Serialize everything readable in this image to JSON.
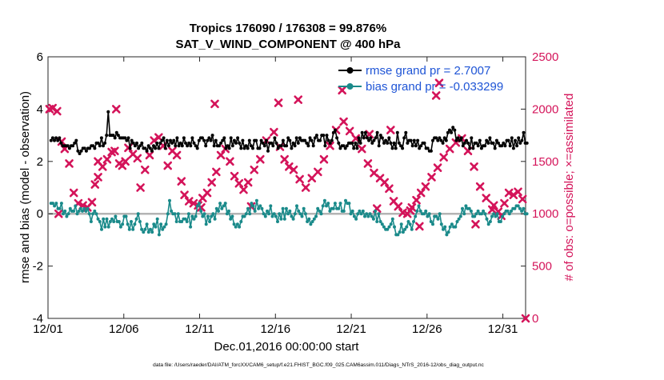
{
  "chart_data": {
    "type": "line",
    "title": "Tropics 176090 / 176308 = 99.876%",
    "subtitle": "SAT_V_WIND_COMPONENT @ 400 hPa",
    "xlabel": "Dec.01,2016 00:00:00 start",
    "ylabel_left": "rmse and bias (model - observation)",
    "ylabel_right": "# of obs: o=possible; ×=assimilated",
    "footer": "data file: /Users/raeder/DAI/ATM_forcXX/CAM6_setup/f.e21.FHIST_BGC.f09_025.CAM6assim.011/Diags_NTrS_2016-12/obs_diag_output.nc",
    "xlim": [
      0,
      31.5
    ],
    "ylim_left": [
      -4,
      6
    ],
    "ylim_right": [
      0,
      2500
    ],
    "x_ticks": [
      0,
      5,
      10,
      15,
      20,
      25,
      30
    ],
    "x_tick_labels": [
      "12/01",
      "12/06",
      "12/11",
      "12/16",
      "12/21",
      "12/26",
      "12/31"
    ],
    "y_left_ticks": [
      -4,
      -2,
      0,
      2,
      4,
      6
    ],
    "y_right_ticks": [
      0,
      500,
      1000,
      1500,
      2000,
      2500
    ],
    "legend": [
      {
        "name": "rmse grand pr = 2.7007",
        "color": "#000000"
      },
      {
        "name": "bias grand pr = -0.033299",
        "color": "#1a8a8a"
      }
    ],
    "colors": {
      "rmse": "#000000",
      "bias": "#1a8a8a",
      "obs": "#d4145a",
      "label_right": "#d4145a",
      "legend_text": "#1f55d6",
      "zero_line": "#b4b4b4"
    },
    "rmse": [
      2.8,
      2.9,
      2.8,
      2.9,
      2.8,
      2.9,
      2.7,
      2.6,
      2.6,
      2.6,
      2.6,
      2.5,
      2.6,
      2.6,
      2.7,
      2.8,
      2.4,
      2.3,
      2.4,
      2.5,
      2.5,
      2.4,
      2.5,
      2.5,
      2.6,
      2.6,
      2.5,
      2.7,
      2.7,
      2.6,
      2.9,
      2.6,
      2.7,
      3.0,
      3.9,
      3.0,
      3.0,
      3.0,
      2.9,
      3.1,
      3.0,
      2.9,
      2.9,
      2.9,
      2.9,
      2.8,
      2.9,
      2.5,
      2.8,
      2.7,
      2.6,
      2.7,
      2.5,
      2.6,
      2.7,
      2.5,
      2.5,
      2.4,
      2.6,
      2.5,
      2.4,
      2.6,
      2.5,
      2.7,
      2.5,
      2.7,
      2.8,
      2.9,
      2.5,
      2.8,
      2.6,
      2.8,
      2.7,
      2.8,
      2.6,
      2.9,
      2.6,
      2.7,
      2.6,
      2.9,
      2.7,
      2.6,
      2.7,
      2.6,
      2.9,
      2.7,
      2.6,
      2.5,
      2.8,
      2.9,
      2.9,
      2.8,
      2.6,
      2.8,
      2.9,
      2.8,
      3.0,
      2.6,
      2.8,
      2.6,
      2.6,
      2.7,
      2.8,
      2.9,
      2.5,
      2.6,
      2.5,
      2.9,
      2.6,
      2.8,
      2.7,
      2.9,
      2.7,
      2.5,
      2.8,
      2.5,
      2.6,
      2.5,
      2.8,
      2.6,
      2.5,
      2.8,
      2.8,
      2.5,
      2.5,
      2.8,
      2.7,
      2.6,
      2.8,
      2.4,
      2.7,
      2.7,
      2.6,
      2.9,
      2.7,
      2.5,
      2.6,
      2.6,
      2.8,
      2.6,
      2.6,
      2.9,
      2.8,
      2.5,
      2.7,
      2.6,
      2.9,
      2.7,
      2.9,
      2.8,
      2.8,
      2.8,
      2.7,
      2.6,
      2.9,
      2.8,
      2.6,
      2.9,
      3.0,
      2.8,
      2.8,
      3.0,
      3.0,
      2.6,
      3.0,
      2.8,
      2.7,
      2.8,
      3.1,
      3.2,
      2.9,
      2.7,
      2.5,
      2.6,
      2.6,
      2.5,
      2.6,
      2.7,
      2.7,
      2.7,
      2.5,
      2.7,
      2.5,
      2.9,
      2.7,
      3.1,
      2.9,
      3.1,
      2.9,
      2.8,
      2.9,
      2.7,
      2.8,
      2.9,
      3.1,
      2.6,
      3.0,
      2.9,
      2.7,
      2.8,
      2.7,
      2.9,
      2.7,
      2.5,
      2.7,
      2.5,
      3.1,
      2.7,
      2.6,
      2.5,
      2.9,
      3.1,
      2.7,
      2.8,
      2.8,
      2.6,
      2.8,
      2.6,
      2.8,
      2.5,
      2.6,
      2.7,
      2.7,
      2.5,
      2.5,
      2.4,
      2.4,
      2.8,
      2.9,
      2.9,
      2.8,
      2.9,
      2.8,
      2.7,
      2.9,
      2.8,
      3.1,
      3.2,
      3.1,
      3.3,
      3.2,
      2.8,
      2.9,
      2.8,
      2.9,
      2.6,
      2.7,
      2.8,
      2.7,
      2.5,
      2.9,
      2.5,
      2.7,
      2.7,
      2.6,
      2.8,
      2.5,
      2.6,
      2.6,
      2.8,
      2.7,
      2.9,
      2.7,
      2.7,
      2.5,
      2.8,
      2.7,
      2.6,
      2.6,
      2.7,
      2.6,
      2.8,
      2.8,
      2.6,
      2.9,
      2.5,
      2.8,
      2.6,
      2.9,
      2.7,
      2.8,
      3.1,
      2.7,
      2.7
    ],
    "bias": [
      0.4,
      0.4,
      0.3,
      0.4,
      0.2,
      0.2,
      0.4,
      0.0,
      0.1,
      -0.1,
      0.0,
      0.2,
      0.1,
      0.1,
      0.3,
      0.0,
      0.1,
      0.2,
      0.1,
      0.2,
      0.1,
      0.2,
      0.0,
      -0.3,
      0.0,
      0.1,
      0.0,
      -0.2,
      -0.3,
      -0.6,
      -0.2,
      -0.5,
      -0.2,
      -0.5,
      -0.3,
      -0.2,
      -0.3,
      -0.1,
      -0.3,
      -0.3,
      -0.5,
      -0.4,
      -0.1,
      -0.1,
      -0.4,
      -0.6,
      -0.3,
      -0.6,
      -0.4,
      -0.2,
      0.0,
      -0.3,
      -0.6,
      -0.7,
      -0.6,
      -0.4,
      -0.7,
      -0.6,
      -0.7,
      -0.4,
      -0.5,
      -0.2,
      -0.8,
      -0.4,
      -0.6,
      -0.5,
      -0.4,
      0.0,
      0.5,
      0.1,
      0.0,
      0.0,
      -0.3,
      0.0,
      -0.3,
      -0.3,
      -0.2,
      -0.2,
      -0.3,
      0.0,
      -0.5,
      -0.1,
      -0.2,
      -0.1,
      0.3,
      0.4,
      0.1,
      -0.1,
      0.0,
      -0.4,
      -0.1,
      -0.3,
      -0.1,
      0.0,
      -0.2,
      0.2,
      0.1,
      0.4,
      0.2,
      0.3,
      0.4,
      0.0,
      0.1,
      -0.2,
      -0.1,
      -0.4,
      -0.5,
      -0.4,
      -0.5,
      -0.3,
      -0.1,
      -0.1,
      0.0,
      0.2,
      0.0,
      0.4,
      0.3,
      0.1,
      0.5,
      0.2,
      0.3,
      0.2,
      0.0,
      -0.1,
      0.1,
      0.0,
      0.3,
      -0.1,
      0.0,
      -0.1,
      -0.3,
      0.0,
      -0.2,
      0.2,
      -0.2,
      0.2,
      0.0,
      0.1,
      -0.1,
      -0.2,
      0.0,
      0.3,
      0.1,
      0.0,
      -0.1,
      0.2,
      0.0,
      -0.3,
      -0.2,
      -0.4,
      -0.3,
      -0.2,
      -0.1,
      0.2,
      0.1,
      0.0,
      0.3,
      0.5,
      0.3,
      0.4,
      0.1,
      0.2,
      0.2,
      0.4,
      0.2,
      0.2,
      0.4,
      0.1,
      0.1,
      0.5,
      0.4,
      0.4,
      0.0,
      0.1,
      -0.1,
      -0.2,
      0.0,
      0.1,
      0.0,
      0.1,
      -0.1,
      0.0,
      -0.1,
      0.0,
      -0.1,
      -0.2,
      0.1,
      -0.3,
      0.0,
      -0.3,
      -0.4,
      -0.5,
      -0.6,
      -0.6,
      -0.5,
      -0.4,
      -0.2,
      -0.5,
      -0.8,
      -0.8,
      -0.7,
      -0.4,
      -0.7,
      -0.6,
      -0.5,
      -0.3,
      -0.4,
      -0.6,
      -0.3,
      -0.1,
      0.1,
      0.3,
      0.1,
      0.0,
      0.0,
      0.1,
      -0.1,
      0.0,
      -0.3,
      -0.4,
      -0.1,
      -0.1,
      -0.2,
      0.0,
      -0.4,
      -0.6,
      -0.5,
      -0.8,
      -0.7,
      -0.5,
      -0.4,
      -0.5,
      -0.5,
      -0.3,
      -0.2,
      -0.1,
      0.2,
      0.0,
      0.3,
      0.2,
      0.2,
      0.1,
      -0.1,
      -0.1,
      0.0,
      0.1,
      0.0,
      0.0,
      0.1,
      0.0,
      -0.2,
      -0.4,
      -0.3,
      -0.1,
      0.0,
      -0.1,
      0.0,
      -0.3,
      -0.3,
      -0.1,
      0.0,
      0.1,
      0.1,
      0.0,
      0.1,
      0.2,
      0.2,
      0.3,
      0.3,
      0.2,
      0.1,
      0.2,
      0.0,
      0.0
    ],
    "obs_count": [
      [
        0.1,
        2000
      ],
      [
        0.3,
        2010
      ],
      [
        0.6,
        1980
      ],
      [
        0.9,
        1690
      ],
      [
        1.1,
        1620
      ],
      [
        1.4,
        1480
      ],
      [
        1.7,
        1200
      ],
      [
        2.0,
        1100
      ],
      [
        2.3,
        1080
      ],
      [
        2.6,
        1060
      ],
      [
        2.9,
        1110
      ],
      [
        3.1,
        1280
      ],
      [
        3.3,
        1350
      ],
      [
        3.6,
        1450
      ],
      [
        3.9,
        1520
      ],
      [
        4.2,
        1590
      ],
      [
        4.4,
        1600
      ],
      [
        4.7,
        1480
      ],
      [
        4.9,
        1460
      ],
      [
        5.1,
        1500
      ],
      [
        5.3,
        1630
      ],
      [
        5.6,
        1570
      ],
      [
        5.9,
        1530
      ],
      [
        6.1,
        1250
      ],
      [
        6.4,
        1420
      ],
      [
        6.7,
        1560
      ],
      [
        7.0,
        1700
      ],
      [
        7.3,
        1730
      ],
      [
        7.6,
        1650
      ],
      [
        7.9,
        1460
      ],
      [
        8.2,
        1600
      ],
      [
        8.5,
        1560
      ],
      [
        8.8,
        1310
      ],
      [
        9.0,
        1180
      ],
      [
        9.3,
        1120
      ],
      [
        9.6,
        1100
      ],
      [
        9.9,
        1080
      ],
      [
        10.2,
        1150
      ],
      [
        10.5,
        1200
      ],
      [
        10.8,
        1300
      ],
      [
        11.1,
        1400
      ],
      [
        11.4,
        1560
      ],
      [
        11.7,
        1620
      ],
      [
        12.0,
        1500
      ],
      [
        12.3,
        1360
      ],
      [
        12.6,
        1290
      ],
      [
        12.9,
        1230
      ],
      [
        13.2,
        1300
      ],
      [
        13.6,
        1420
      ],
      [
        14.0,
        1520
      ],
      [
        14.4,
        1700
      ],
      [
        14.9,
        1780
      ],
      [
        15.3,
        1640
      ],
      [
        15.6,
        1520
      ],
      [
        15.9,
        1450
      ],
      [
        16.2,
        1420
      ],
      [
        16.6,
        1330
      ],
      [
        17.0,
        1250
      ],
      [
        17.4,
        1340
      ],
      [
        17.8,
        1400
      ],
      [
        18.2,
        1520
      ],
      [
        18.6,
        1650
      ],
      [
        19.0,
        1800
      ],
      [
        19.5,
        1880
      ],
      [
        19.9,
        1790
      ],
      [
        20.3,
        1720
      ],
      [
        20.7,
        1620
      ],
      [
        21.1,
        1480
      ],
      [
        21.5,
        1390
      ],
      [
        21.9,
        1340
      ],
      [
        22.2,
        1300
      ],
      [
        22.5,
        1240
      ],
      [
        22.8,
        1120
      ],
      [
        23.1,
        1070
      ],
      [
        23.4,
        1010
      ],
      [
        23.7,
        1000
      ],
      [
        24.0,
        1060
      ],
      [
        24.3,
        1130
      ],
      [
        24.6,
        1200
      ],
      [
        24.9,
        1260
      ],
      [
        25.3,
        1350
      ],
      [
        25.7,
        1440
      ],
      [
        26.1,
        1540
      ],
      [
        26.5,
        1620
      ],
      [
        26.9,
        1680
      ],
      [
        27.3,
        1720
      ],
      [
        27.7,
        1600
      ],
      [
        28.1,
        1450
      ],
      [
        28.5,
        1260
      ],
      [
        28.9,
        1150
      ],
      [
        29.3,
        1040
      ],
      [
        29.7,
        1020
      ],
      [
        30.1,
        1100
      ],
      [
        30.4,
        1200
      ],
      [
        30.7,
        1180
      ],
      [
        31.0,
        1210
      ],
      [
        31.3,
        1140
      ]
    ],
    "obs_outliers": [
      [
        0.7,
        1000
      ],
      [
        3.3,
        1500
      ],
      [
        4.5,
        2000
      ],
      [
        11.0,
        2050
      ],
      [
        15.2,
        2060
      ],
      [
        16.5,
        2090
      ],
      [
        19.4,
        2180
      ],
      [
        21.2,
        1760
      ],
      [
        22.6,
        1800
      ],
      [
        25.6,
        2130
      ],
      [
        25.8,
        2250
      ],
      [
        10.1,
        1060
      ],
      [
        13.4,
        1070
      ],
      [
        21.7,
        1050
      ],
      [
        24.5,
        880
      ],
      [
        23.9,
        1030
      ],
      [
        28.2,
        900
      ],
      [
        29.4,
        1080
      ],
      [
        29.9,
        980
      ],
      [
        31.5,
        0
      ]
    ]
  }
}
